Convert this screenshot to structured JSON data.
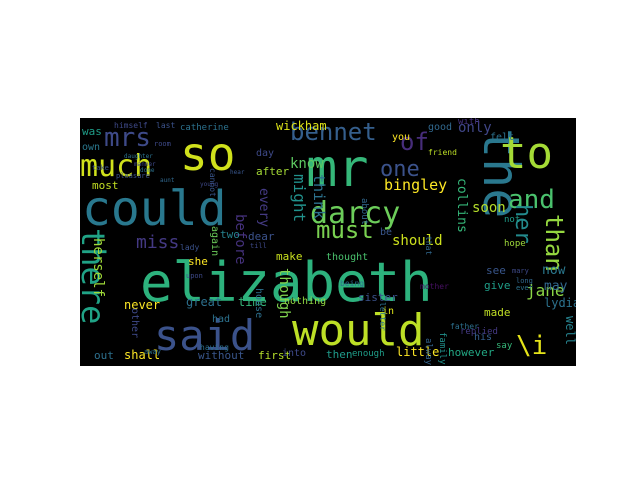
{
  "wordcloud": {
    "background": "#000000",
    "words": [
      {
        "text": "elizabeth",
        "color": "#2db27d"
      },
      {
        "text": "would",
        "color": "#bddf26"
      },
      {
        "text": "could",
        "color": "#29788e"
      },
      {
        "text": "mr",
        "color": "#35b779"
      },
      {
        "text": "so",
        "color": "#d0e11c"
      },
      {
        "text": "the",
        "color": "#2a788e"
      },
      {
        "text": "said",
        "color": "#3b528b"
      },
      {
        "text": "to",
        "color": "#a5db36"
      },
      {
        "text": "darcy",
        "color": "#6ccd5a"
      },
      {
        "text": "much",
        "color": "#d0e11c"
      },
      {
        "text": "there",
        "color": "#20a386"
      },
      {
        "text": "mrs",
        "color": "#3e4a89"
      },
      {
        "text": "bennet",
        "color": "#355f8d"
      },
      {
        "text": "and",
        "color": "#4ac16d"
      },
      {
        "text": "must",
        "color": "#7ad151"
      },
      {
        "text": "one",
        "color": "#3b528b"
      },
      {
        "text": "of",
        "color": "#472d7b"
      },
      {
        "text": "than",
        "color": "#95d840"
      },
      {
        "text": "her",
        "color": "#238a8d"
      },
      {
        "text": "\\i",
        "color": "#e5e419"
      },
      {
        "text": "miss",
        "color": "#443983"
      },
      {
        "text": "jane",
        "color": "#8bd646"
      },
      {
        "text": "bingley",
        "color": "#fde725"
      },
      {
        "text": "think",
        "color": "#2c728e"
      },
      {
        "text": "might",
        "color": "#21918c"
      },
      {
        "text": "know",
        "color": "#5ec962"
      },
      {
        "text": "soon",
        "color": "#b5de2b"
      },
      {
        "text": "should",
        "color": "#cde11d"
      },
      {
        "text": "herself",
        "color": "#a0da39"
      },
      {
        "text": "though",
        "color": "#7fd34e"
      },
      {
        "text": "before",
        "color": "#46327e"
      },
      {
        "text": "every",
        "color": "#443a83"
      },
      {
        "text": "only",
        "color": "#404688"
      },
      {
        "text": "collins",
        "color": "#35b779"
      },
      {
        "text": "wickham",
        "color": "#dde318"
      },
      {
        "text": "now",
        "color": "#2a788e"
      },
      {
        "text": "may",
        "color": "#31688e"
      },
      {
        "text": "lydia",
        "color": "#2c728e"
      },
      {
        "text": "well",
        "color": "#26828e"
      },
      {
        "text": "never",
        "color": "#fde725"
      },
      {
        "text": "time",
        "color": "#35b779"
      },
      {
        "text": "great",
        "color": "#2d708e"
      },
      {
        "text": "sister",
        "color": "#3b528b"
      },
      {
        "text": "made",
        "color": "#c0df25"
      },
      {
        "text": "give",
        "color": "#1f9e89"
      },
      {
        "text": "see",
        "color": "#39568c"
      },
      {
        "text": "little",
        "color": "#fde725"
      },
      {
        "text": "however",
        "color": "#22a884"
      },
      {
        "text": "enough",
        "color": "#1f9e89"
      },
      {
        "text": "first",
        "color": "#b5de2b"
      },
      {
        "text": "without",
        "color": "#39568c"
      },
      {
        "text": "shall",
        "color": "#fde725"
      },
      {
        "text": "out",
        "color": "#2d708e"
      },
      {
        "text": "into",
        "color": "#3e4989"
      },
      {
        "text": "then",
        "color": "#1f9a8a"
      },
      {
        "text": "had",
        "color": "#2c728e"
      },
      {
        "text": "house",
        "color": "#2d708e"
      },
      {
        "text": "nothing",
        "color": "#90d743"
      },
      {
        "text": "make",
        "color": "#cae11f"
      },
      {
        "text": "thought",
        "color": "#4ac16d"
      },
      {
        "text": "dear",
        "color": "#3b528b"
      },
      {
        "text": "two",
        "color": "#26828e"
      },
      {
        "text": "she",
        "color": "#fde725"
      },
      {
        "text": "after",
        "color": "#a5db36"
      },
      {
        "text": "day",
        "color": "#3e4a89"
      },
      {
        "text": "again",
        "color": "#6ccd5a"
      },
      {
        "text": "most",
        "color": "#c2df23"
      },
      {
        "text": "was",
        "color": "#1f9e89"
      },
      {
        "text": "own",
        "color": "#2a788e"
      },
      {
        "text": "other",
        "color": "#3e4989"
      },
      {
        "text": "in",
        "color": "#dde318"
      },
      {
        "text": "be",
        "color": "#39568c"
      },
      {
        "text": "good",
        "color": "#31688e"
      },
      {
        "text": "with",
        "color": "#46327e"
      },
      {
        "text": "you",
        "color": "#fde725"
      },
      {
        "text": "hope",
        "color": "#9fda3a"
      },
      {
        "text": "not",
        "color": "#1f9e89"
      },
      {
        "text": "about",
        "color": "#31688e"
      },
      {
        "text": "catherine",
        "color": "#2c728e"
      },
      {
        "text": "himself",
        "color": "#3e4989"
      },
      {
        "text": "last",
        "color": "#3b528b"
      },
      {
        "text": "felt",
        "color": "#2c728e"
      },
      {
        "text": "replied",
        "color": "#443983"
      },
      {
        "text": "father",
        "color": "#2d708e"
      },
      {
        "text": "family",
        "color": "#21918c"
      },
      {
        "text": "always",
        "color": "#33638d"
      },
      {
        "text": "say",
        "color": "#35b779"
      },
      {
        "text": "his",
        "color": "#355f8d"
      },
      {
        "text": "letter",
        "color": "#2c728e"
      },
      {
        "text": "mother",
        "color": "#471063"
      },
      {
        "text": "having",
        "color": "#2d708e"
      },
      {
        "text": "gardiner",
        "color": "#3b528b"
      },
      {
        "text": "friend",
        "color": "#bddf26"
      },
      {
        "text": "being",
        "color": "#2c728e"
      },
      {
        "text": "mary",
        "color": "#3e4a89"
      },
      {
        "text": "long",
        "color": "#31688e"
      },
      {
        "text": "till",
        "color": "#3e4989"
      },
      {
        "text": "ever",
        "color": "#2c728e"
      },
      {
        "text": "lady",
        "color": "#3b528b"
      },
      {
        "text": "upon",
        "color": "#3e4989"
      },
      {
        "text": "away",
        "color": "#2c728e"
      },
      {
        "text": "room",
        "color": "#3e4a89"
      },
      {
        "text": "cannot",
        "color": "#39568c"
      },
      {
        "text": "that",
        "color": "#31688e"
      },
      {
        "text": "pleasure",
        "color": "#3b528b"
      },
      {
        "text": "daughter",
        "color": "#2c728e"
      },
      {
        "text": "manner",
        "color": "#3e4989"
      },
      {
        "text": "hear",
        "color": "#39568c"
      },
      {
        "text": "take",
        "color": "#3b528b"
      },
      {
        "text": "done",
        "color": "#2c728e"
      },
      {
        "text": "young",
        "color": "#3e4989"
      },
      {
        "text": "aunt",
        "color": "#31688e"
      }
    ]
  }
}
